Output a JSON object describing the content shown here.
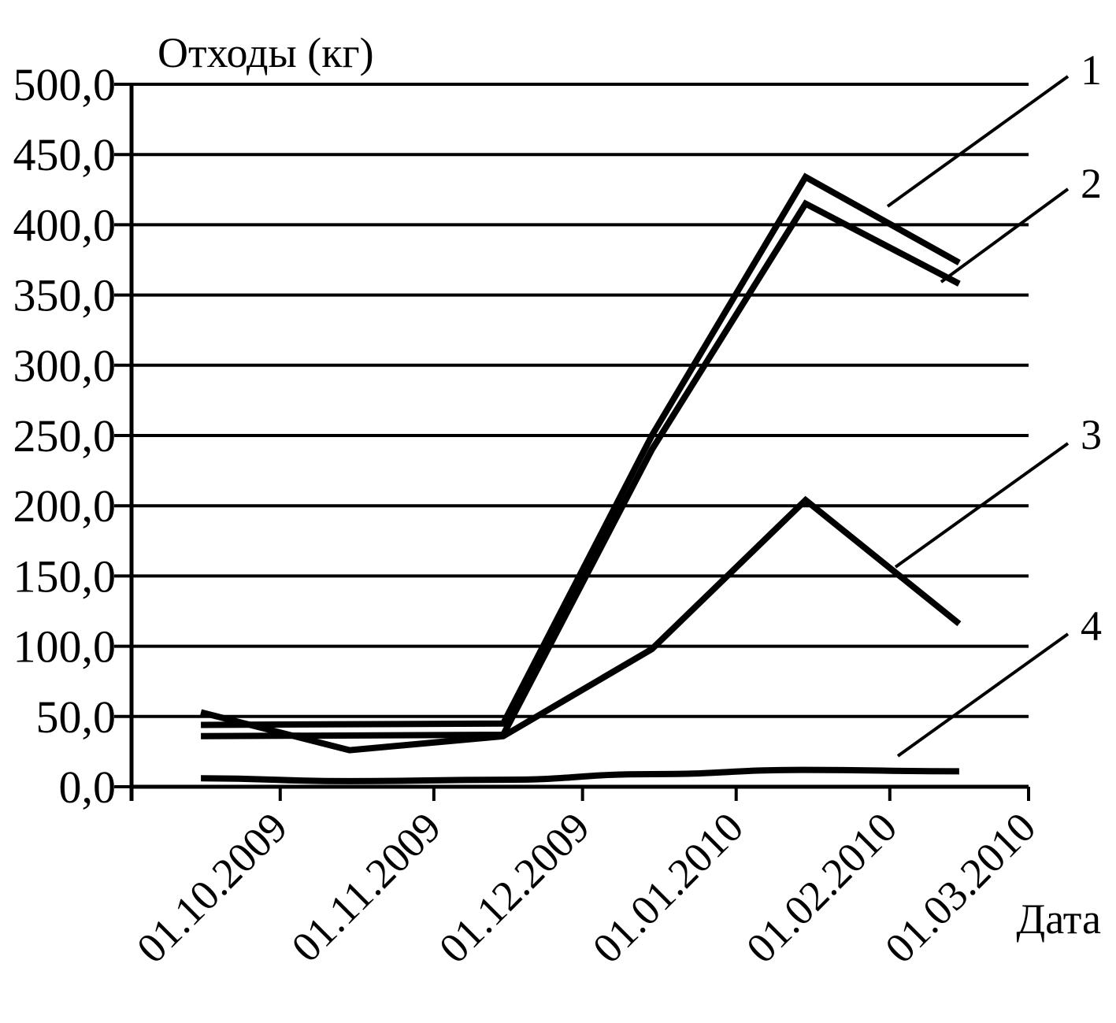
{
  "chart_data": {
    "type": "line",
    "title": "",
    "ylabel": "Отходы (кг)",
    "xlabel": "Дата",
    "ylim": [
      0,
      500
    ],
    "xlim": [
      "2009-09-01",
      "2010-03-01"
    ],
    "y_ticks": [
      "0,0",
      "50,0",
      "100,0",
      "150,0",
      "200,0",
      "250,0",
      "300,0",
      "350,0",
      "400,0",
      "450,0",
      "500,0"
    ],
    "x_ticks": [
      "01.10.2009",
      "01.11.2009",
      "01.12.2009",
      "01.01.2010",
      "01.02.2010",
      "01.03.2010"
    ],
    "grid": true,
    "legend": "none",
    "series": [
      {
        "name": "1",
        "x": [
          "2009-09-15",
          "2009-11-15",
          "2009-12-15",
          "2010-01-15",
          "2010-02-15"
        ],
        "values": [
          44,
          45,
          250,
          434,
          373
        ]
      },
      {
        "name": "2",
        "x": [
          "2009-09-15",
          "2009-11-15",
          "2009-12-15",
          "2010-01-15",
          "2010-02-15"
        ],
        "values": [
          36,
          37,
          240,
          415,
          358
        ]
      },
      {
        "name": "3",
        "x": [
          "2009-09-15",
          "2009-10-15",
          "2009-11-15",
          "2009-12-15",
          "2010-01-15",
          "2010-02-15"
        ],
        "values": [
          53,
          26,
          36,
          98,
          204,
          116
        ]
      },
      {
        "name": "4",
        "x": [
          "2009-09-15",
          "2009-10-15",
          "2009-11-15",
          "2009-12-15",
          "2010-01-15",
          "2010-02-15"
        ],
        "values": [
          6,
          4,
          5,
          9,
          12,
          11
        ]
      }
    ]
  }
}
